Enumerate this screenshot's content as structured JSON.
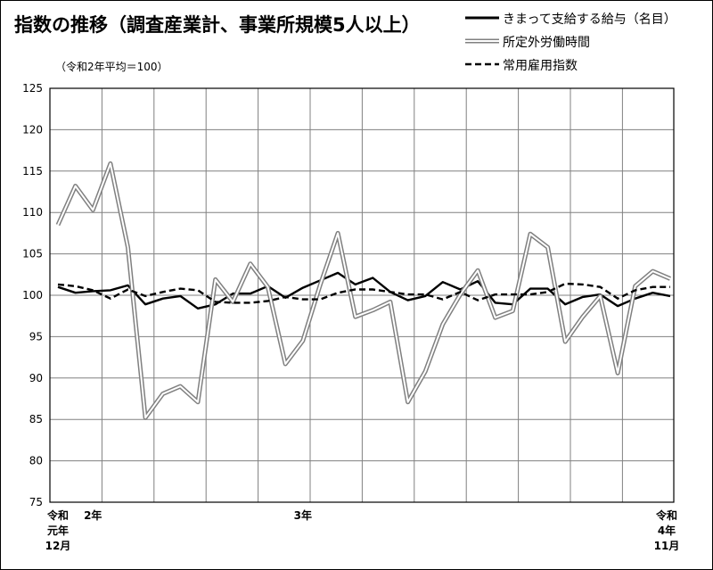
{
  "title": "指数の推移（調査産業計、事業所規模5人以上）",
  "unit_note": "（令和2年平均＝100）",
  "chart_data": {
    "type": "line",
    "yticks": [
      75,
      80,
      85,
      90,
      95,
      100,
      105,
      110,
      115,
      120,
      125
    ],
    "ylim": [
      75,
      125
    ],
    "x_period_count": 36,
    "x_tick_labels": [
      {
        "index": 0,
        "lines": [
          "令和",
          "元年",
          "12月"
        ]
      },
      {
        "index": 2,
        "lines": [
          "2年"
        ]
      },
      {
        "index": 14,
        "lines": [
          "3年"
        ]
      },
      {
        "index": 35,
        "lines": [
          "令和",
          "4年",
          "11月"
        ]
      }
    ],
    "grid": true,
    "legend_position": "top-right",
    "series": [
      {
        "name": "きまって支給する給与（名目）",
        "style": "solid",
        "color": "#000000",
        "values": [
          101.0,
          100.3,
          100.5,
          100.6,
          101.2,
          98.9,
          99.6,
          99.9,
          98.4,
          98.9,
          100.2,
          100.2,
          101.1,
          99.7,
          100.9,
          101.8,
          102.7,
          101.3,
          102.1,
          100.4,
          99.4,
          99.9,
          101.6,
          100.7,
          101.7,
          99.1,
          98.9,
          100.8,
          100.8,
          98.9,
          99.8,
          100.1,
          98.7,
          99.6,
          100.3,
          99.9
        ]
      },
      {
        "name": "所定外労働時間",
        "style": "double",
        "color": "#808080",
        "values": [
          108.5,
          113.2,
          110.3,
          115.9,
          105.8,
          85.2,
          88.1,
          89.0,
          87.1,
          101.9,
          99.2,
          103.8,
          101.0,
          91.7,
          94.5,
          101.3,
          107.5,
          97.4,
          98.2,
          99.2,
          87.1,
          90.8,
          96.5,
          100.1,
          103.0,
          97.3,
          98.1,
          107.4,
          105.8,
          94.4,
          97.4,
          99.9,
          90.6,
          101.1,
          102.9,
          102.0
        ]
      },
      {
        "name": "常用雇用指数",
        "style": "dashed",
        "color": "#000000",
        "values": [
          101.3,
          101.1,
          100.6,
          99.6,
          100.7,
          99.9,
          100.4,
          100.8,
          100.6,
          99.2,
          99.1,
          99.1,
          99.3,
          99.8,
          99.5,
          99.5,
          100.3,
          100.7,
          100.7,
          100.4,
          100.1,
          100.1,
          99.5,
          100.4,
          99.4,
          100.1,
          100.1,
          100.1,
          100.4,
          101.4,
          101.3,
          101.0,
          99.6,
          100.6,
          101.0,
          101.0
        ]
      }
    ]
  }
}
